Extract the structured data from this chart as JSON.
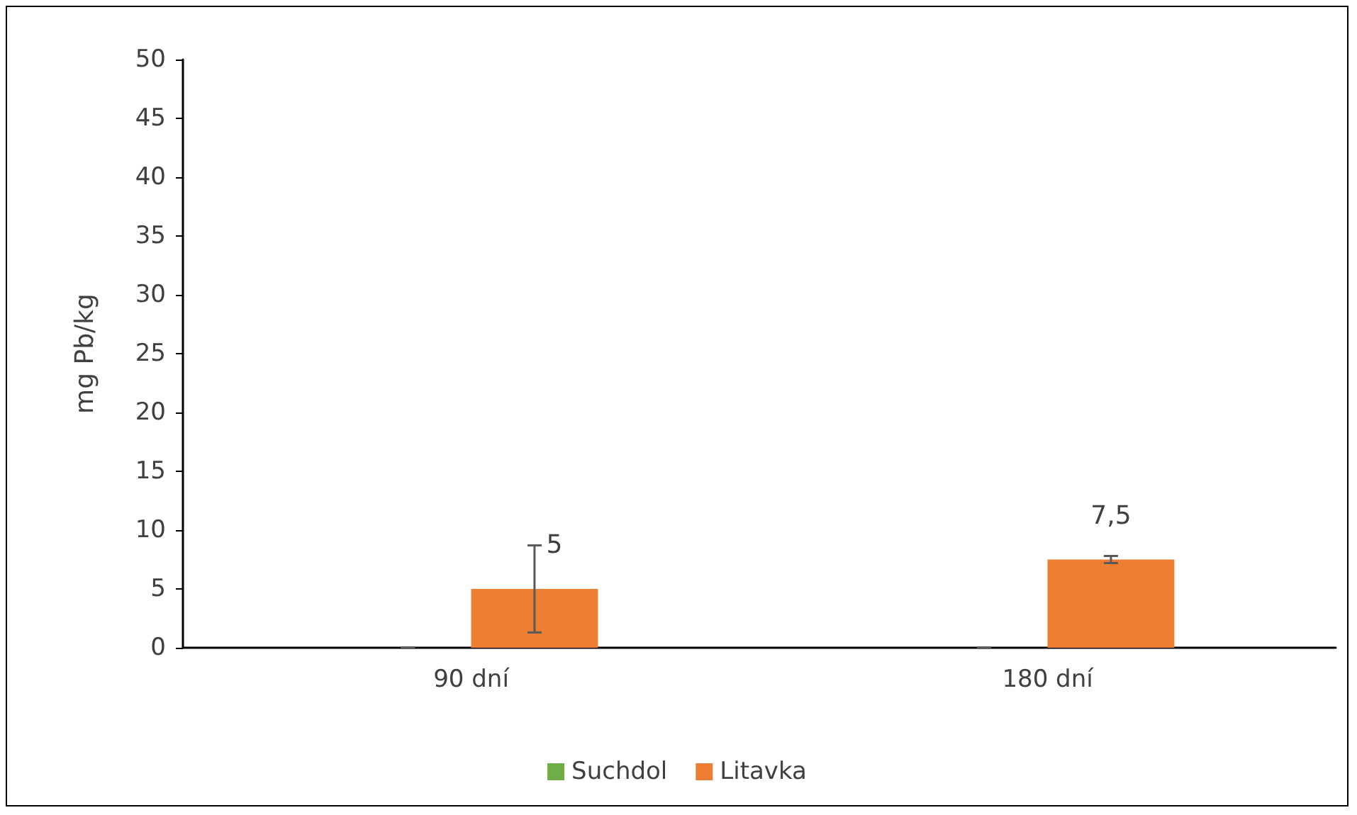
{
  "chart_data": {
    "type": "bar",
    "ylabel": "mg Pb/kg",
    "categories": [
      "90 dní",
      "180 dní"
    ],
    "series": [
      {
        "name": "Suchdol",
        "color": "#70ad47",
        "values": [
          0,
          0
        ],
        "errors": [
          0,
          0
        ]
      },
      {
        "name": "Litavka",
        "color": "#ed7d31",
        "values": [
          5,
          7.5
        ],
        "errors": [
          3.7,
          0.3
        ],
        "value_labels": [
          "5",
          "7,5"
        ]
      }
    ],
    "ylim": [
      0,
      50
    ],
    "yticks": [
      0,
      5,
      10,
      15,
      20,
      25,
      30,
      35,
      40,
      45,
      50
    ],
    "grid": false,
    "legend": "bottom"
  }
}
